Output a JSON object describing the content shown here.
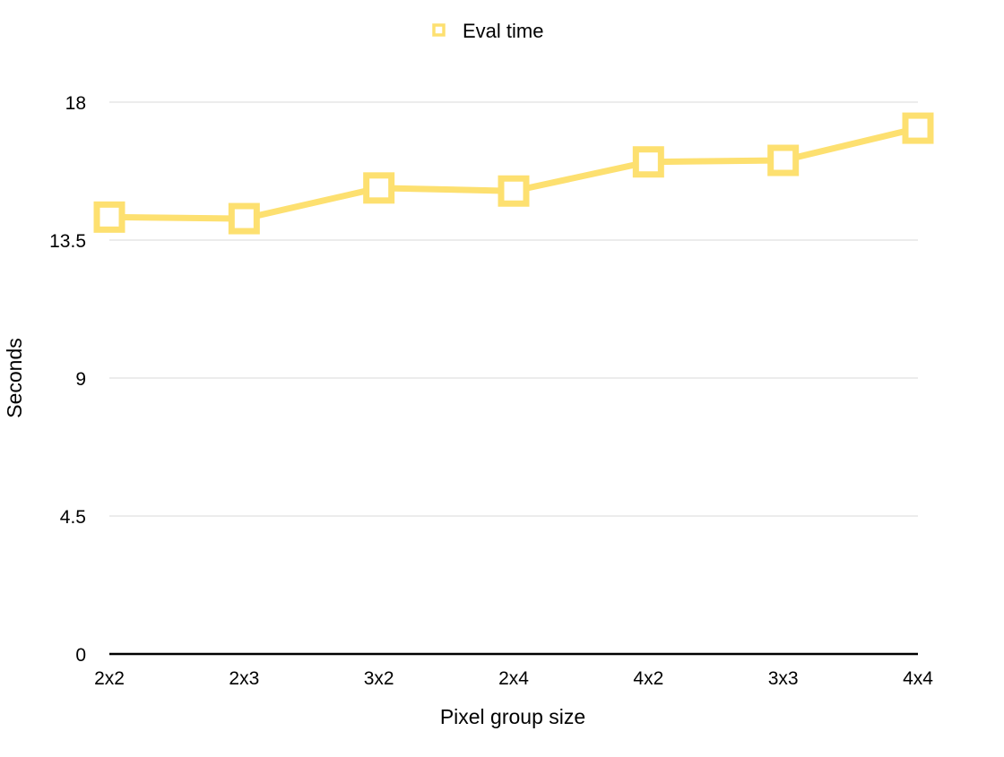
{
  "chart_data": {
    "type": "line",
    "categories": [
      "2x2",
      "2x3",
      "3x2",
      "2x4",
      "4x2",
      "3x3",
      "4x4"
    ],
    "series": [
      {
        "name": "Eval time",
        "color": "#fde070",
        "marker": "square-open",
        "values": [
          14.25,
          14.2,
          15.2,
          15.1,
          16.05,
          16.1,
          17.15
        ]
      }
    ],
    "title": "",
    "xlabel": "Pixel group size",
    "ylabel": "Seconds",
    "ylim": [
      0,
      18
    ],
    "yticks": [
      0,
      4.5,
      9,
      13.5,
      18
    ],
    "ytick_labels": [
      "0",
      "4.5",
      "9",
      "13.5",
      "18"
    ],
    "grid": "horizontal",
    "legend": "top-center"
  }
}
